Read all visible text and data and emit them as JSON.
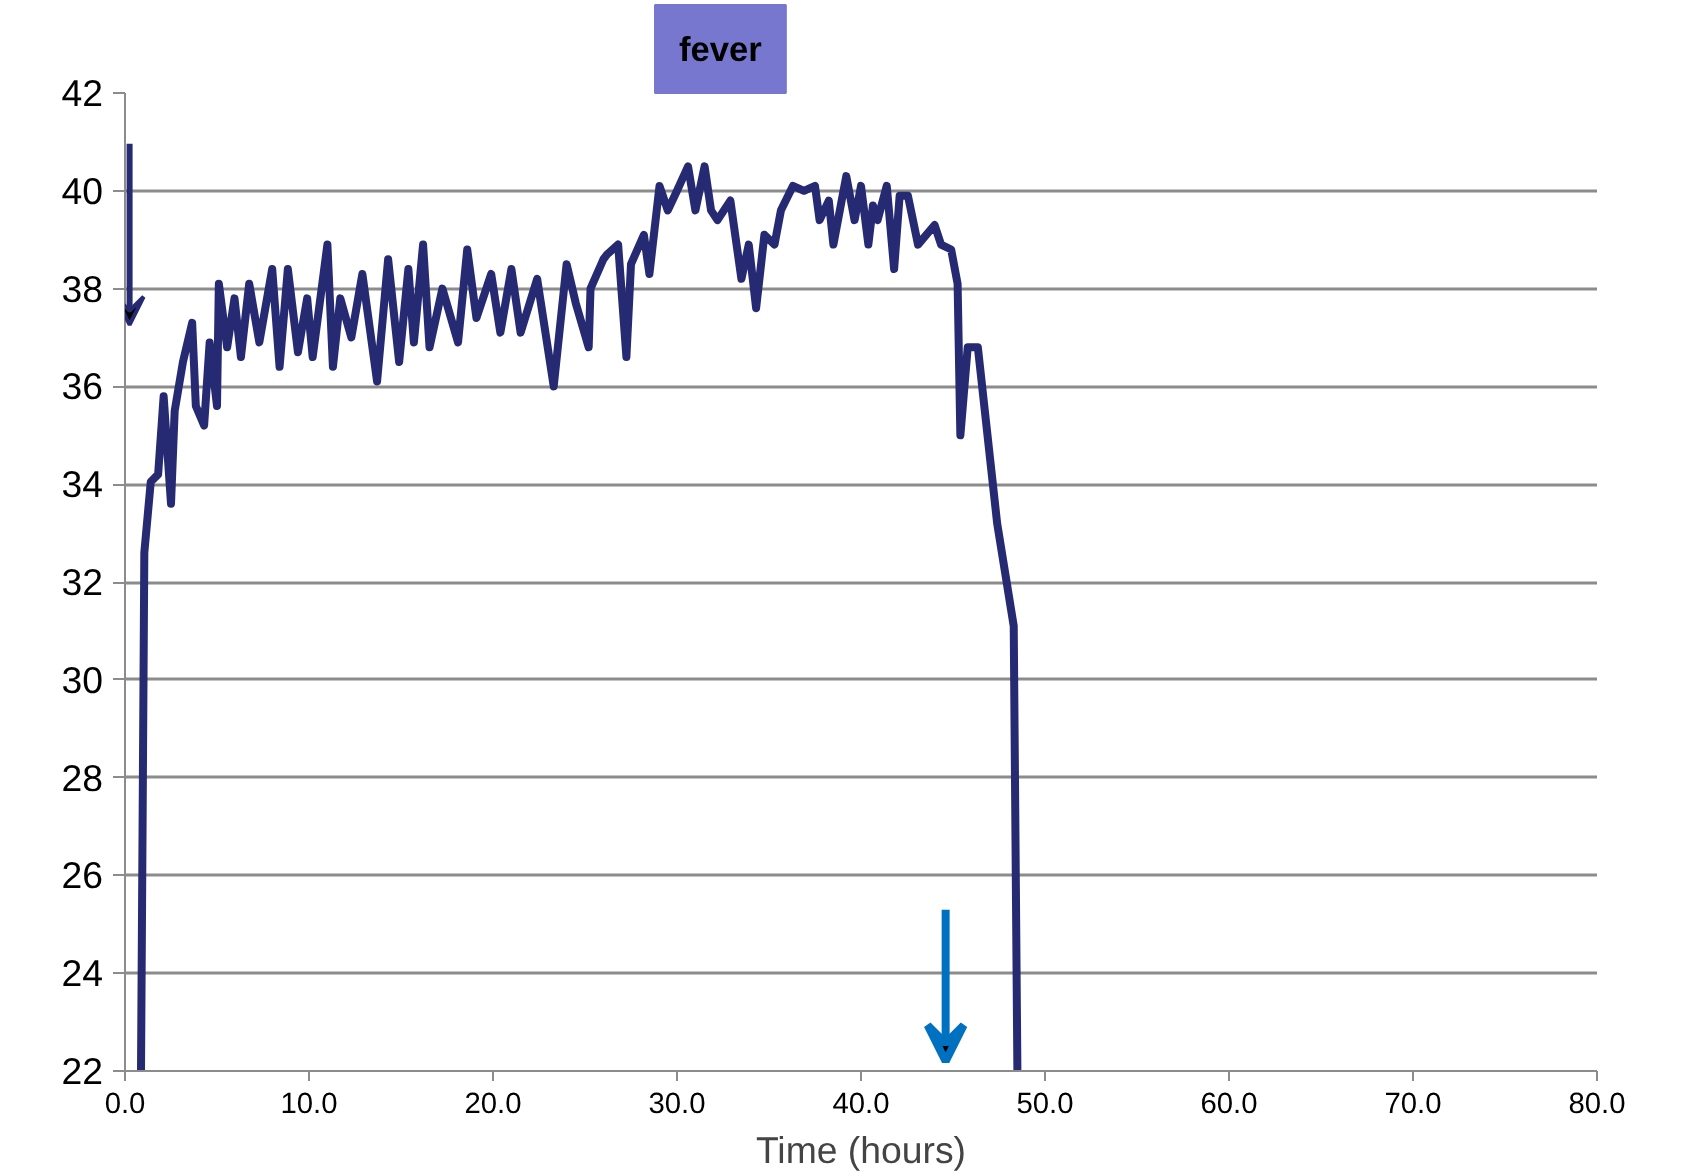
{
  "chart_data": {
    "type": "line",
    "xlabel": "Time (hours)",
    "annotations": [
      "fever"
    ],
    "x": [
      0.87,
      1.05,
      1.4,
      1.8,
      2.1,
      2.5,
      2.7,
      3.15,
      3.65,
      3.85,
      4.3,
      4.6,
      5.0,
      5.1,
      5.55,
      5.95,
      6.3,
      6.75,
      7.3,
      8.0,
      8.4,
      8.85,
      9.4,
      9.9,
      10.2,
      11.0,
      11.3,
      11.7,
      12.3,
      12.9,
      13.7,
      14.3,
      14.9,
      15.4,
      15.7,
      16.2,
      16.55,
      17.25,
      18.1,
      18.6,
      19.1,
      19.9,
      20.4,
      21.0,
      21.5,
      22.4,
      23.3,
      24.0,
      24.5,
      25.2,
      25.3,
      26.0,
      26.2,
      26.8,
      27.25,
      27.5,
      28.2,
      28.5,
      29.05,
      29.5,
      30.0,
      30.6,
      31.0,
      31.5,
      31.85,
      32.2,
      32.9,
      33.5,
      33.9,
      34.3,
      34.75,
      35.3,
      35.65,
      36.3,
      36.9,
      37.5,
      37.75,
      38.25,
      38.5,
      39.2,
      39.65,
      40.0,
      40.4,
      40.65,
      40.9,
      41.4,
      41.8,
      42.1,
      42.55,
      43.1,
      44.0,
      44.35,
      44.9,
      45.25,
      45.4,
      45.8,
      46.35,
      47.4,
      48.3,
      48.5
    ],
    "series": [
      {
        "color": "#262a72",
        "values": [
          22.0,
          32.6,
          34.05,
          34.2,
          35.8,
          33.6,
          35.5,
          36.5,
          37.3,
          35.6,
          35.2,
          36.9,
          35.6,
          38.1,
          36.8,
          37.8,
          36.6,
          38.1,
          36.9,
          38.4,
          36.4,
          38.4,
          36.7,
          37.8,
          36.6,
          38.9,
          36.4,
          37.8,
          37.0,
          38.3,
          36.1,
          38.6,
          36.5,
          38.4,
          36.9,
          38.9,
          36.8,
          38.0,
          36.9,
          38.8,
          37.4,
          38.3,
          37.1,
          38.4,
          37.1,
          38.2,
          36.0,
          38.5,
          37.7,
          36.8,
          38.0,
          38.6,
          38.7,
          38.9,
          36.6,
          38.5,
          39.1,
          38.3,
          40.1,
          39.6,
          40.0,
          40.5,
          39.6,
          40.5,
          39.6,
          39.4,
          39.8,
          38.2,
          38.9,
          37.6,
          39.1,
          38.9,
          39.6,
          40.1,
          40.0,
          40.1,
          39.4,
          39.8,
          38.9,
          40.3,
          39.4,
          40.1,
          38.9,
          39.7,
          39.4,
          40.1,
          38.4,
          39.9,
          39.9,
          38.9,
          39.3,
          38.9,
          38.8,
          38.1,
          35.0,
          36.8,
          36.8,
          33.2,
          31.1,
          22.0
        ]
      }
    ],
    "xlim": [
      0,
      80
    ],
    "xticks": [
      {
        "value": 0,
        "label": "0.0"
      },
      {
        "value": 10,
        "label": "10.0"
      },
      {
        "value": 20,
        "label": "20.0"
      },
      {
        "value": 30,
        "label": "30.0"
      },
      {
        "value": 40,
        "label": "40.0"
      },
      {
        "value": 50,
        "label": "50.0"
      },
      {
        "value": 60,
        "label": "60.0"
      },
      {
        "value": 70,
        "label": "70.0"
      },
      {
        "value": 80,
        "label": "80.0"
      }
    ],
    "ylim": [
      22,
      42
    ],
    "yticks": [
      22,
      24,
      26,
      28,
      30,
      32,
      34,
      36,
      38,
      40,
      42
    ],
    "grid": "y",
    "marker": "none",
    "line_style": "solid"
  }
}
